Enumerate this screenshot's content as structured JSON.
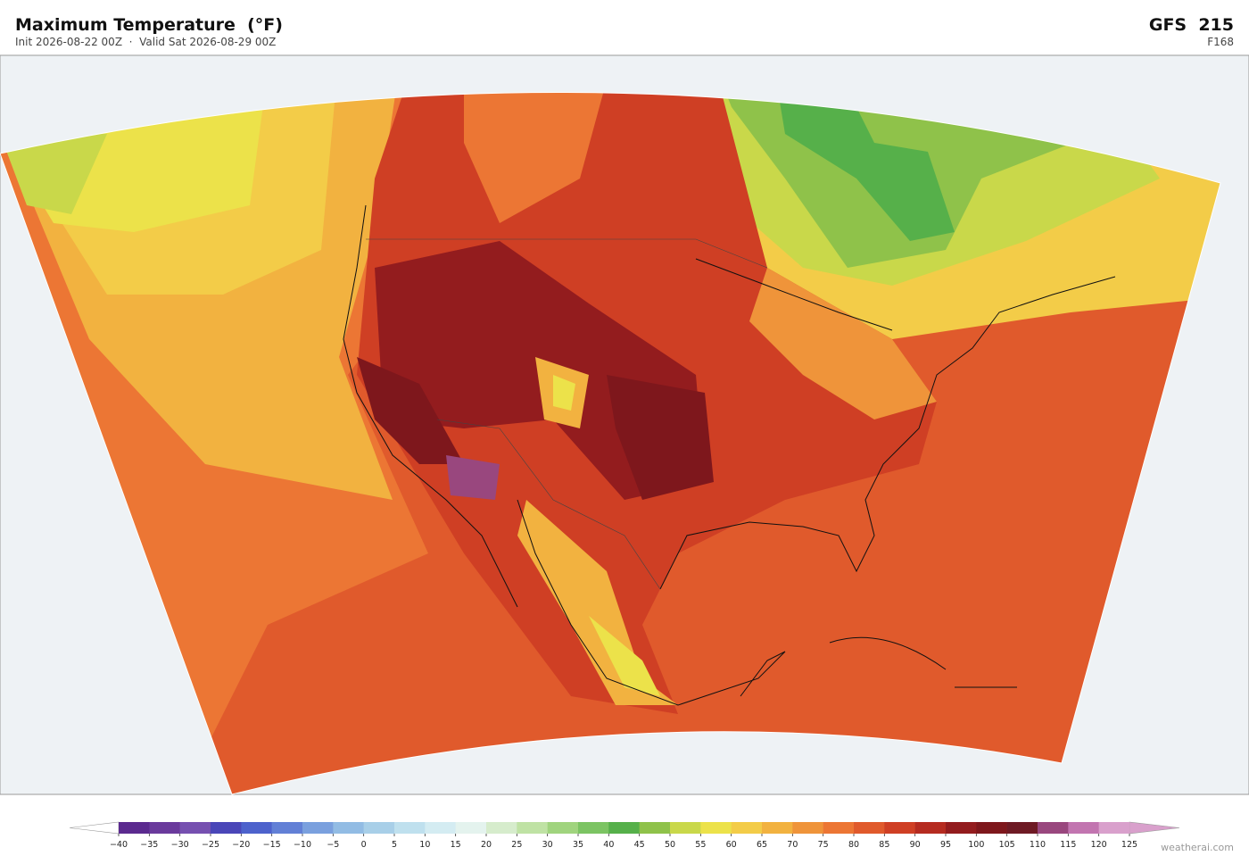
{
  "header": {
    "title": "Maximum Temperature  (°F)",
    "subtitle": "Init 2026-08-22 00Z  ·  Valid Sat 2026-08-29 00Z",
    "model": "GFS  215",
    "forecast_hour": "F168"
  },
  "colorbar": {
    "ticks": [
      {
        "value": -40,
        "label": "−40"
      },
      {
        "value": -35,
        "label": "−35"
      },
      {
        "value": -30,
        "label": "−30"
      },
      {
        "value": -25,
        "label": "−25"
      },
      {
        "value": -20,
        "label": "−20"
      },
      {
        "value": -15,
        "label": "−15"
      },
      {
        "value": -10,
        "label": "−10"
      },
      {
        "value": -5,
        "label": "−5"
      },
      0,
      5,
      10,
      15,
      20,
      25,
      30,
      35,
      40,
      45,
      50,
      55,
      60,
      65,
      70,
      75,
      80,
      85,
      90,
      95,
      100,
      105,
      110,
      115,
      120,
      125
    ],
    "colors": [
      "#5b2a8f",
      "#6a3a9c",
      "#7650b0",
      "#4a46b8",
      "#4d62cc",
      "#6280d6",
      "#7aa0de",
      "#92bce4",
      "#a8cfe8",
      "#bfe0ee",
      "#d4ecf2",
      "#e4f3ee",
      "#d6eccc",
      "#bfe2a4",
      "#a0d47e",
      "#7cc463",
      "#56b04a",
      "#8fc24a",
      "#c9d84a",
      "#ece24a",
      "#f3cc48",
      "#f2b240",
      "#ef943a",
      "#ec7634",
      "#e05a2c",
      "#cf3f24",
      "#b52b20",
      "#931c1e",
      "#7e171c",
      "#6e1a24",
      "#99477e",
      "#c275b0",
      "#d9a0cc"
    ],
    "under_color": "#ffffff",
    "over_color": "#d9a0cc"
  },
  "watermark": "weatherai.com"
}
